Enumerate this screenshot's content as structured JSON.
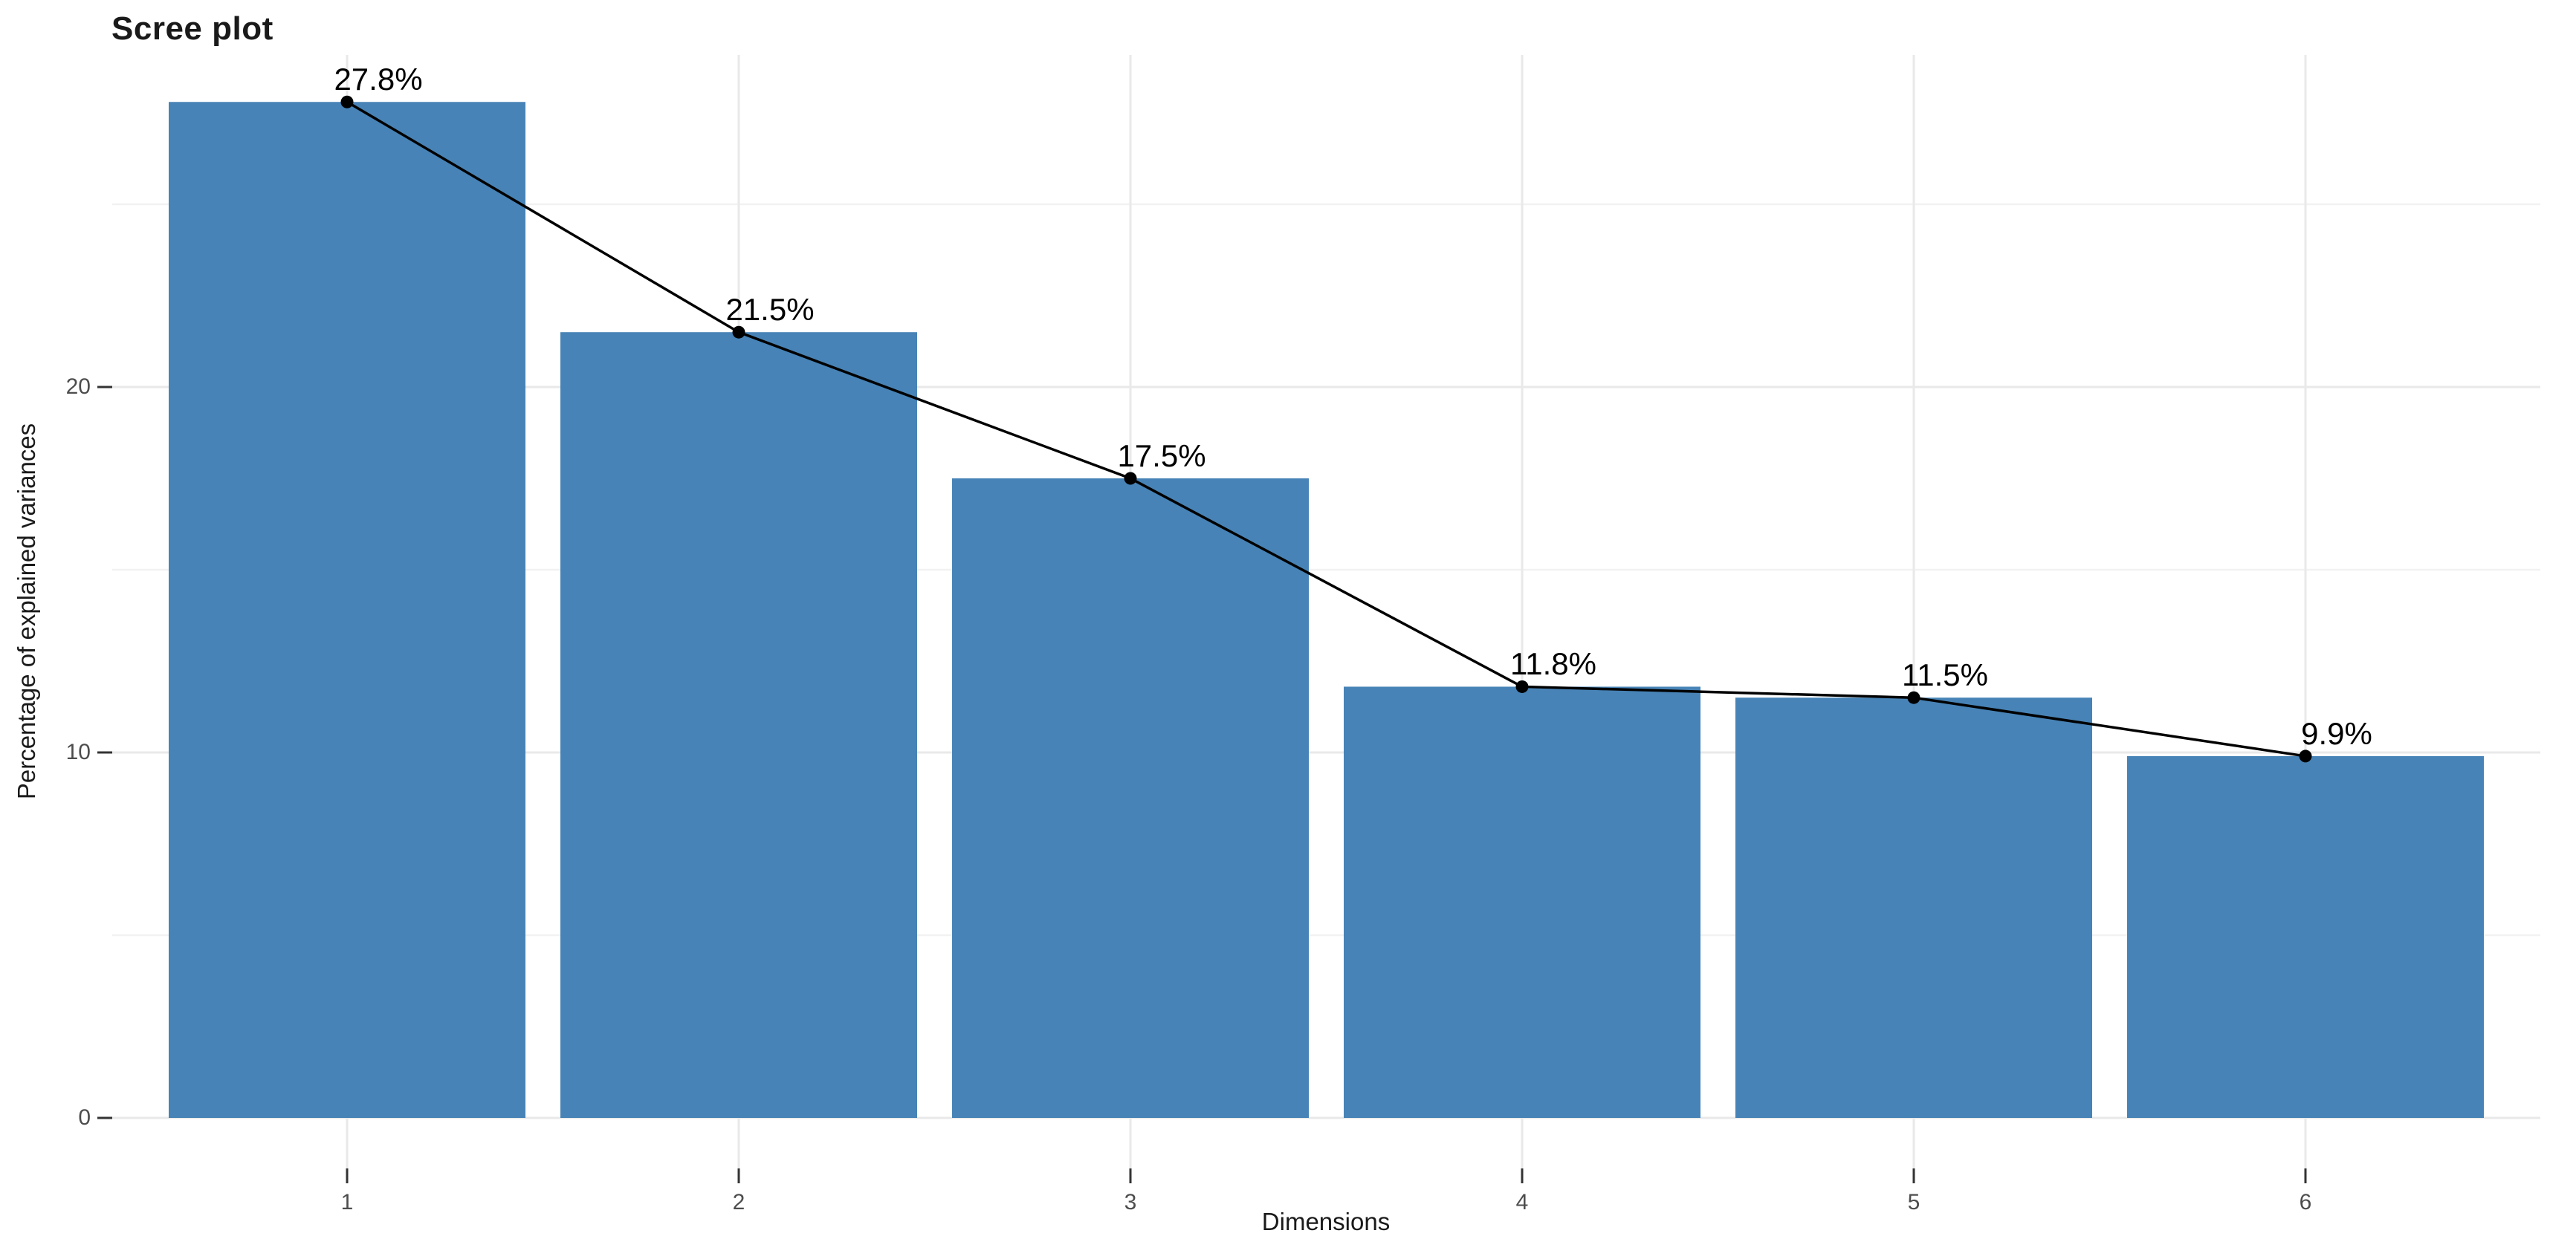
{
  "chart_data": {
    "type": "bar",
    "title": "Scree plot",
    "xlabel": "Dimensions",
    "ylabel": "Percentage of explained variances",
    "categories": [
      "1",
      "2",
      "3",
      "4",
      "5",
      "6"
    ],
    "values": [
      27.8,
      21.5,
      17.5,
      11.8,
      11.5,
      9.9
    ],
    "point_labels": [
      "27.8%",
      "21.5%",
      "17.5%",
      "11.8%",
      "11.5%",
      "9.9%"
    ],
    "overlay_line": {
      "type": "line",
      "x": [
        1,
        2,
        3,
        4,
        5,
        6
      ],
      "values": [
        27.8,
        21.5,
        17.5,
        11.8,
        11.5,
        9.9
      ],
      "marker": "point"
    },
    "y_ticks": [
      0,
      10,
      20
    ],
    "y_minor_ticks": [
      5,
      15,
      25
    ],
    "ylim": [
      0,
      29.2
    ],
    "grid": "major-and-minor-horizontal, major-vertical",
    "legend": "none",
    "colors": {
      "bar": "#4783B6",
      "line": "#000000",
      "point": "#000000",
      "grid_major": "#E9E9E9",
      "grid_minor": "#F2F2F2",
      "axis_tick": "#333333",
      "tick_label": "#4D4D4D",
      "text": "#1A1A1A",
      "background": "#FFFFFF"
    }
  }
}
